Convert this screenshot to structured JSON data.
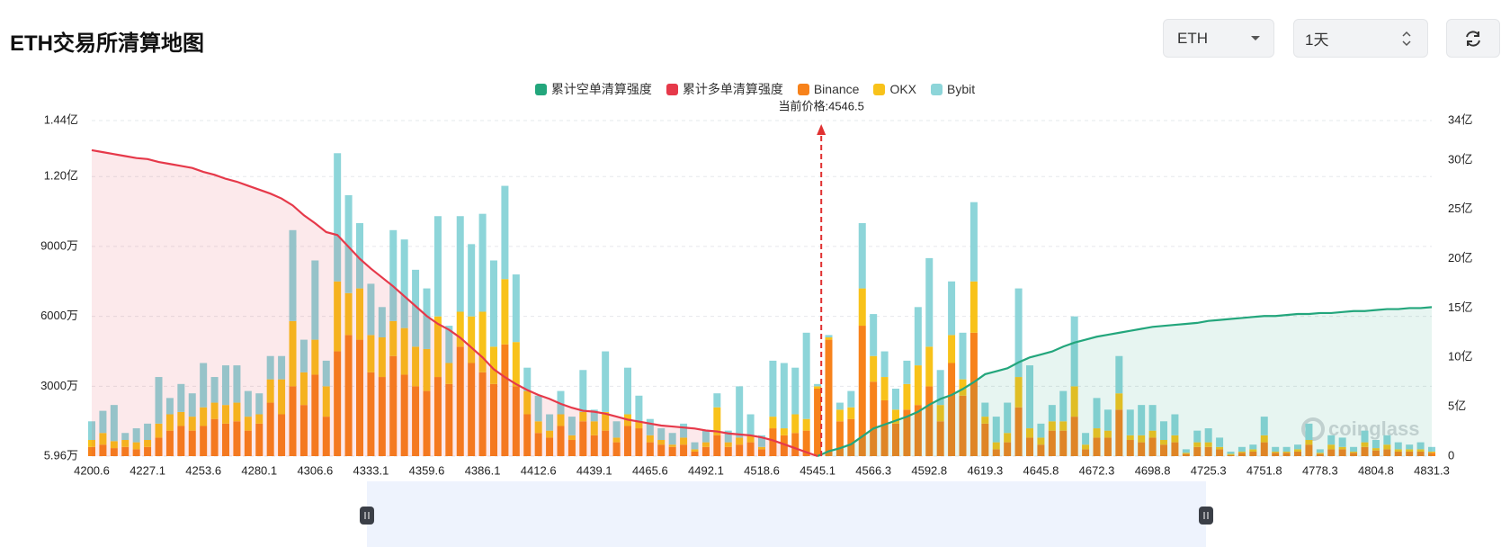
{
  "header": {
    "title": "ETH交易所清算地图"
  },
  "controls": {
    "symbol": "ETH",
    "interval": "1天"
  },
  "chart_data": {
    "type": "bar",
    "watermark": "coinglass",
    "annotation": {
      "text": "当前价格:4546.5",
      "value": 4546.5,
      "color": "#e03131"
    },
    "categories": [
      4200.6,
      null,
      null,
      null,
      null,
      4227.1,
      null,
      null,
      null,
      null,
      4253.6,
      null,
      null,
      null,
      null,
      4280.1,
      null,
      null,
      null,
      null,
      4306.6,
      null,
      null,
      null,
      null,
      4333.1,
      null,
      null,
      null,
      null,
      4359.6,
      null,
      null,
      null,
      null,
      4386.1,
      null,
      null,
      null,
      null,
      4412.6,
      null,
      null,
      null,
      null,
      4439.1,
      null,
      null,
      null,
      null,
      4465.6,
      null,
      null,
      null,
      null,
      4492.1,
      null,
      null,
      null,
      null,
      4518.6,
      null,
      null,
      null,
      null,
      4545.1,
      null,
      null,
      null,
      null,
      4566.3,
      null,
      null,
      null,
      null,
      4592.8,
      null,
      null,
      null,
      null,
      4619.3,
      null,
      null,
      null,
      null,
      4645.8,
      null,
      null,
      null,
      null,
      4672.3,
      null,
      null,
      null,
      null,
      4698.8,
      null,
      null,
      null,
      null,
      4725.3,
      null,
      null,
      null,
      null,
      4751.8,
      null,
      null,
      null,
      null,
      4778.3,
      null,
      null,
      null,
      null,
      4804.8,
      null,
      null,
      null,
      null,
      4831.3
    ],
    "ylim": [
      5.96,
      14400
    ],
    "yticks": [
      {
        "value": 5.96,
        "label": "5.96万"
      },
      {
        "value": 3000,
        "label": "3000万"
      },
      {
        "value": 6000,
        "label": "6000万"
      },
      {
        "value": 9000,
        "label": "9000万"
      },
      {
        "value": 12000,
        "label": "1.20亿"
      },
      {
        "value": 14400,
        "label": "1.44亿"
      }
    ],
    "y2lim": [
      0,
      34
    ],
    "y2ticks": [
      0,
      {
        "value": 5,
        "label": "5亿"
      },
      {
        "value": 10,
        "label": "10亿"
      },
      {
        "value": 15,
        "label": "15亿"
      },
      {
        "value": 20,
        "label": "20亿"
      },
      {
        "value": 25,
        "label": "25亿"
      },
      {
        "value": 30,
        "label": "30亿"
      },
      {
        "value": 34,
        "label": "34亿"
      }
    ],
    "grid": true,
    "series": [
      {
        "name": "累计空单清算强度",
        "type": "line",
        "axis": "y2",
        "color": "#23a67c",
        "values": [
          null,
          null,
          null,
          null,
          null,
          null,
          null,
          null,
          null,
          null,
          null,
          null,
          null,
          null,
          null,
          null,
          null,
          null,
          null,
          null,
          null,
          null,
          null,
          null,
          null,
          null,
          null,
          null,
          null,
          null,
          null,
          null,
          null,
          null,
          null,
          null,
          null,
          null,
          null,
          null,
          null,
          null,
          null,
          null,
          null,
          null,
          null,
          null,
          null,
          null,
          null,
          null,
          null,
          null,
          null,
          null,
          null,
          null,
          null,
          null,
          null,
          null,
          null,
          null,
          null,
          0,
          0.5,
          0.8,
          1.2,
          2.0,
          2.8,
          3.2,
          3.6,
          4.0,
          4.5,
          5.2,
          5.8,
          6.2,
          6.8,
          7.5,
          8.3,
          8.6,
          8.9,
          9.5,
          10.0,
          10.3,
          10.6,
          11.1,
          11.5,
          11.8,
          12.1,
          12.3,
          12.5,
          12.7,
          12.9,
          13.1,
          13.2,
          13.3,
          13.4,
          13.5,
          13.7,
          13.8,
          13.9,
          14.0,
          14.1,
          14.2,
          14.2,
          14.3,
          14.4,
          14.4,
          14.5,
          14.5,
          14.6,
          14.7,
          14.7,
          14.8,
          14.9,
          14.9,
          15.0,
          15.0,
          15.1
        ]
      },
      {
        "name": "累计多单清算强度",
        "type": "line",
        "axis": "y2",
        "color": "#e6394a",
        "values": [
          31,
          30.8,
          30.6,
          30.4,
          30.2,
          30.1,
          29.8,
          29.6,
          29.4,
          29.2,
          28.8,
          28.5,
          28.1,
          27.8,
          27.4,
          27.0,
          26.6,
          26.1,
          25.4,
          24.4,
          23.6,
          22.7,
          22.4,
          21.2,
          20.0,
          19.0,
          18.1,
          17.2,
          16.2,
          15.2,
          14.2,
          13.4,
          12.8,
          12.0,
          11.0,
          10.0,
          8.8,
          8.0,
          7.3,
          6.7,
          6.2,
          5.8,
          5.3,
          4.9,
          4.6,
          4.5,
          4.3,
          4.0,
          3.7,
          3.5,
          3.3,
          3.1,
          3.0,
          2.9,
          2.8,
          2.6,
          2.5,
          2.3,
          2.2,
          2.1,
          1.9,
          1.6,
          1.2,
          0.8,
          0.4,
          0,
          null,
          null,
          null,
          null,
          null,
          null,
          null,
          null,
          null,
          null,
          null,
          null,
          null,
          null,
          null,
          null,
          null,
          null,
          null,
          null,
          null,
          null,
          null,
          null,
          null,
          null,
          null,
          null,
          null,
          null,
          null,
          null,
          null,
          null,
          null,
          null,
          null,
          null,
          null,
          null,
          null,
          null,
          null,
          null,
          null,
          null,
          null,
          null,
          null,
          null,
          null,
          null,
          null,
          null,
          null
        ]
      },
      {
        "name": "Binance",
        "type": "bar",
        "color": "#f7821b",
        "values": [
          400,
          500,
          350,
          400,
          300,
          400,
          800,
          1100,
          1300,
          1100,
          1300,
          1600,
          1400,
          1500,
          1100,
          1400,
          2300,
          1800,
          3000,
          2200,
          3500,
          1700,
          4500,
          5200,
          5000,
          3600,
          3400,
          4300,
          3500,
          3000,
          2800,
          3400,
          3100,
          4700,
          4000,
          3600,
          3100,
          4800,
          3000,
          1800,
          1000,
          800,
          1300,
          700,
          1500,
          900,
          1100,
          600,
          1300,
          1200,
          600,
          500,
          400,
          500,
          200,
          400,
          900,
          400,
          500,
          600,
          300,
          1200,
          900,
          1000,
          1100,
          2900,
          5000,
          1500,
          1600,
          5600,
          3200,
          2400,
          1400,
          2000,
          2200,
          3000,
          1500,
          4000,
          2600,
          5300,
          1400,
          300,
          600,
          2100,
          800,
          500,
          1100,
          1100,
          1700,
          300,
          800,
          800,
          2000,
          700,
          600,
          800,
          500,
          600,
          100,
          400,
          400,
          300,
          50,
          150,
          200,
          600,
          150,
          150,
          200,
          500,
          100,
          300,
          300,
          150,
          400,
          250,
          300,
          200,
          200,
          200,
          150
        ]
      },
      {
        "name": "OKX",
        "type": "bar",
        "color": "#f8c21a",
        "values": [
          300,
          500,
          300,
          300,
          300,
          300,
          600,
          700,
          600,
          600,
          800,
          700,
          800,
          800,
          600,
          400,
          1000,
          1500,
          2800,
          1400,
          1500,
          1300,
          3000,
          1800,
          2200,
          1600,
          1700,
          1500,
          2000,
          1700,
          1800,
          2600,
          900,
          1500,
          2000,
          2600,
          1600,
          2800,
          1900,
          1000,
          500,
          300,
          500,
          200,
          400,
          600,
          800,
          200,
          500,
          300,
          300,
          200,
          100,
          300,
          100,
          200,
          1200,
          200,
          300,
          300,
          100,
          500,
          300,
          800,
          500,
          100,
          100,
          500,
          500,
          1600,
          1100,
          1000,
          600,
          1100,
          1700,
          1700,
          700,
          1200,
          700,
          2200,
          300,
          300,
          400,
          1300,
          400,
          300,
          400,
          400,
          1300,
          200,
          400,
          300,
          700,
          200,
          300,
          300,
          200,
          300,
          50,
          200,
          200,
          100,
          50,
          50,
          100,
          300,
          50,
          50,
          100,
          200,
          50,
          200,
          100,
          50,
          200,
          100,
          200,
          100,
          100,
          100,
          50
        ]
      },
      {
        "name": "Bybit",
        "type": "bar",
        "color": "#8dd5d9",
        "values": [
          800,
          950,
          1550,
          300,
          600,
          700,
          2000,
          700,
          1200,
          1000,
          1900,
          1100,
          1700,
          1600,
          1100,
          900,
          1000,
          1000,
          3900,
          1400,
          3400,
          1100,
          5500,
          4200,
          2800,
          2200,
          1300,
          3900,
          3800,
          3300,
          2600,
          4300,
          1600,
          4100,
          3100,
          4200,
          3700,
          4000,
          2900,
          1000,
          1100,
          700,
          1000,
          800,
          1800,
          500,
          2600,
          700,
          2000,
          1100,
          700,
          500,
          500,
          600,
          300,
          500,
          600,
          500,
          2200,
          900,
          500,
          2400,
          2800,
          2000,
          3700,
          100,
          100,
          300,
          700,
          2800,
          1800,
          1100,
          900,
          1000,
          2500,
          3800,
          1500,
          2300,
          2000,
          3400,
          600,
          1100,
          1300,
          3800,
          2700,
          600,
          700,
          1300,
          3000,
          500,
          1300,
          900,
          1600,
          1100,
          1300,
          1100,
          800,
          900,
          150,
          500,
          600,
          400,
          100,
          200,
          200,
          800,
          200,
          200,
          200,
          700,
          150,
          400,
          400,
          200,
          500,
          350,
          400,
          300,
          200,
          300,
          200
        ]
      }
    ]
  }
}
